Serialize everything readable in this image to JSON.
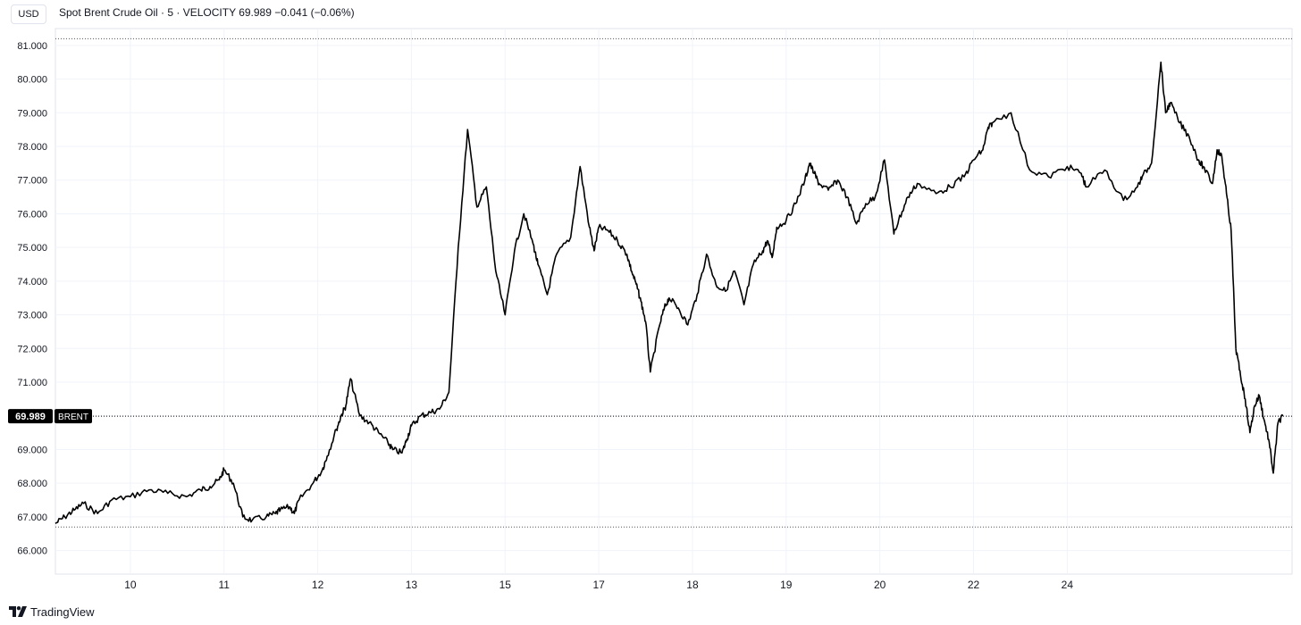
{
  "header": {
    "currency": "USD",
    "legend_title": "Spot Brent Crude Oil · 5 · VELOCITY",
    "legend_value": "69.989",
    "legend_change": "−0.041 (−0.06%)"
  },
  "price_tag": {
    "value": "69.989",
    "symbol": "BRENT"
  },
  "brand": "TradingView",
  "colors": {
    "line": "#000000",
    "grid": "#f0f3fa",
    "axis_text": "#131722",
    "tag_bg": "#000000",
    "tag_text": "#ffffff"
  },
  "chart_data": {
    "type": "line",
    "title": "Spot Brent Crude Oil · 5 · VELOCITY",
    "xlabel": "",
    "ylabel": "",
    "ylim": [
      65.3,
      81.5
    ],
    "yticks": [
      "66.000",
      "67.000",
      "68.000",
      "69.000",
      "70.000",
      "71.000",
      "72.000",
      "73.000",
      "74.000",
      "75.000",
      "76.000",
      "77.000",
      "78.000",
      "79.000",
      "80.000",
      "81.000"
    ],
    "xticks": [
      "10",
      "11",
      "12",
      "13",
      "15",
      "17",
      "18",
      "19",
      "20",
      "22",
      "24"
    ],
    "grid": true,
    "range_lines": {
      "high": 81.2,
      "low": 66.7
    },
    "last_value": 69.989,
    "series": [
      {
        "x": [
          0.0,
          0.1,
          0.2,
          0.3,
          0.45,
          0.6,
          0.8,
          1.0,
          1.2,
          1.4,
          1.55,
          1.65,
          1.75,
          1.8,
          1.9,
          2.0,
          2.1,
          2.25,
          2.35,
          2.4,
          2.5,
          2.55,
          2.6,
          2.75,
          2.85,
          2.9,
          3.0,
          3.05,
          3.1,
          3.15,
          3.25,
          3.35,
          3.45,
          3.55,
          3.6,
          3.7,
          3.75,
          3.8,
          3.9,
          4.0,
          4.1,
          4.2,
          4.3,
          4.4,
          4.5,
          4.6,
          4.7,
          4.8,
          4.9,
          5.0,
          5.1,
          5.15,
          5.25,
          5.35,
          5.5,
          5.6,
          5.7,
          5.75,
          5.8,
          5.9,
          6.0,
          6.1,
          6.15,
          6.2,
          6.25,
          6.3,
          6.35,
          6.45,
          6.5,
          6.55,
          6.65,
          6.75,
          6.85,
          6.95,
          7.05,
          7.15,
          7.25,
          7.35,
          7.45,
          7.55,
          7.6,
          7.65,
          7.7,
          7.8,
          7.9,
          8.0,
          8.05,
          8.1,
          8.15,
          8.25,
          8.35,
          8.45,
          8.55,
          8.65,
          8.75,
          8.85,
          8.95,
          9.0,
          9.1,
          9.2,
          9.4,
          9.55,
          9.7,
          9.8,
          9.9,
          9.95,
          10.0,
          10.2,
          10.4,
          10.6,
          10.8,
          10.95,
          11.0,
          11.2,
          11.4,
          11.55,
          11.6,
          11.7,
          11.8,
          11.85,
          11.9,
          12.0,
          12.1,
          12.2,
          12.25,
          12.35,
          12.4,
          12.45,
          12.5,
          12.55,
          12.6
        ],
        "y": [
          66.8,
          67.0,
          67.2,
          67.4,
          67.1,
          67.5,
          67.6,
          67.8,
          67.7,
          67.6,
          67.8,
          67.9,
          68.1,
          68.4,
          68.0,
          67.0,
          66.9,
          67.0,
          67.1,
          67.2,
          67.3,
          67.1,
          67.5,
          68.0,
          68.4,
          68.8,
          69.6,
          70.0,
          70.3,
          71.1,
          70.0,
          69.8,
          69.5,
          69.2,
          69.0,
          68.9,
          69.3,
          69.7,
          70.0,
          70.1,
          70.2,
          70.7,
          75.0,
          78.5,
          76.2,
          76.8,
          74.3,
          73.0,
          74.9,
          76.0,
          75.1,
          74.5,
          73.6,
          74.8,
          75.3,
          77.4,
          75.6,
          74.9,
          75.6,
          75.5,
          75.2,
          74.8,
          74.3,
          73.9,
          73.4,
          72.8,
          71.3,
          72.7,
          73.2,
          73.5,
          73.2,
          72.7,
          73.6,
          74.8,
          73.9,
          73.7,
          74.3,
          73.3,
          74.5,
          74.9,
          75.2,
          74.7,
          75.6,
          75.8,
          76.3,
          77.0,
          77.5,
          77.2,
          76.9,
          76.7,
          77.0,
          76.5,
          75.7,
          76.3,
          76.5,
          77.6,
          75.4,
          75.8,
          76.5,
          76.9,
          76.6,
          76.8,
          77.1,
          77.6,
          77.9,
          78.5,
          78.7,
          79.0,
          77.3,
          77.1,
          77.4,
          77.2,
          76.8,
          77.3,
          76.4,
          76.8,
          77.1,
          77.5,
          80.5,
          79.0,
          79.3,
          78.7,
          78.3,
          77.6,
          77.4,
          76.9,
          77.9,
          77.7,
          76.6,
          75.5,
          72.0
        ]
      },
      {
        "x": [
          12.6,
          12.65,
          12.7,
          12.75,
          12.8,
          12.85,
          12.9,
          12.95,
          13.0,
          13.05,
          13.1
        ],
        "y": [
          72.0,
          71.2,
          70.5,
          69.5,
          70.3,
          70.6,
          69.9,
          69.3,
          68.3,
          69.8,
          69.989
        ]
      }
    ]
  }
}
